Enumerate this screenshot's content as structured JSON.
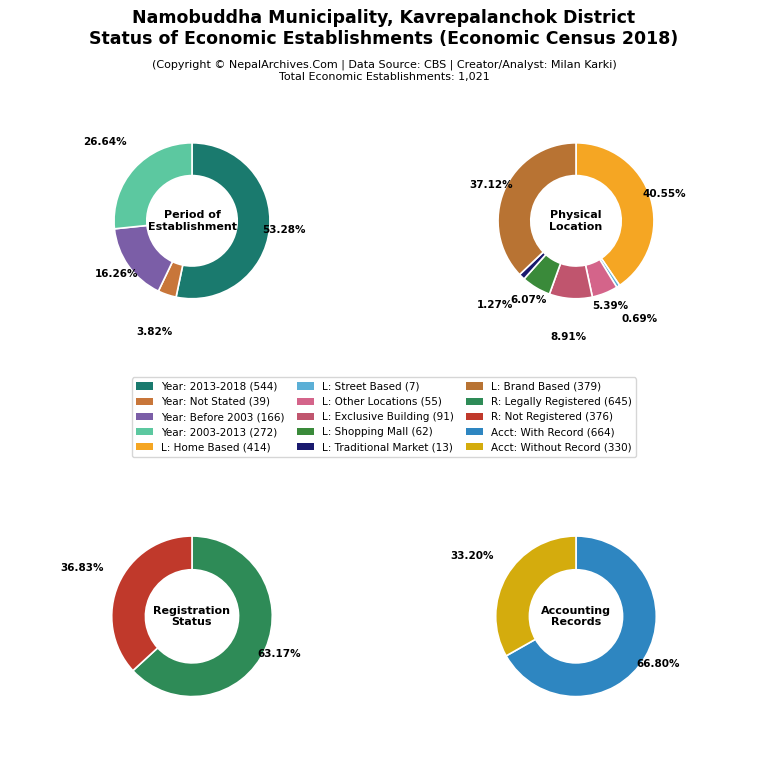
{
  "title": "Namobuddha Municipality, Kavrepalanchok District\nStatus of Economic Establishments (Economic Census 2018)",
  "subtitle": "(Copyright © NepalArchives.Com | Data Source: CBS | Creator/Analyst: Milan Karki)\nTotal Economic Establishments: 1,021",
  "legend": "center",
  "chart_data": [
    {
      "type": "pie",
      "title": "Period of\nEstablishment",
      "categories": [
        "Year: 2013-2018 (544)",
        "Year: Not Stated (39)",
        "Year: Before 2003 (166)",
        "Year: 2003-2013 (272)"
      ],
      "values": [
        53.28,
        3.82,
        16.26,
        26.64
      ],
      "value_labels": [
        "53.28%",
        "3.82%",
        "16.26%",
        "26.64%"
      ],
      "colors": [
        "#1a7a6e",
        "#c8763a",
        "#7b5ea7",
        "#5cc8a0"
      ]
    },
    {
      "type": "pie",
      "title": "Physical\nLocation",
      "categories": [
        "L: Home Based (414)",
        "L: Street Based (7)",
        "L: Other Locations (55)",
        "L: Exclusive Building (91)",
        "L: Shopping Mall (62)",
        "L: Traditional Market (13)",
        "L: Brand Based (379)"
      ],
      "values": [
        40.55,
        0.69,
        5.39,
        8.91,
        6.07,
        1.27,
        37.12
      ],
      "value_labels": [
        "40.55%",
        "0.69%",
        "5.39%",
        "8.91%",
        "6.07%",
        "1.27%",
        "37.12%"
      ],
      "colors": [
        "#f5a623",
        "#5bafd6",
        "#d4648a",
        "#c0556e",
        "#3a8a3a",
        "#1a1a6e",
        "#b87333"
      ]
    },
    {
      "type": "pie",
      "title": "Registration\nStatus",
      "categories": [
        "R: Legally Registered (645)",
        "R: Not Registered (376)"
      ],
      "values": [
        63.17,
        36.83
      ],
      "value_labels": [
        "63.17%",
        "36.83%"
      ],
      "colors": [
        "#2e8b57",
        "#c0392b"
      ]
    },
    {
      "type": "pie",
      "title": "Accounting\nRecords",
      "categories": [
        "Acct: With Record (664)",
        "Acct: Without Record (330)"
      ],
      "values": [
        66.8,
        33.2
      ],
      "value_labels": [
        "66.80%",
        "33.20%"
      ],
      "colors": [
        "#2e86c1",
        "#d4ac0d"
      ]
    }
  ]
}
